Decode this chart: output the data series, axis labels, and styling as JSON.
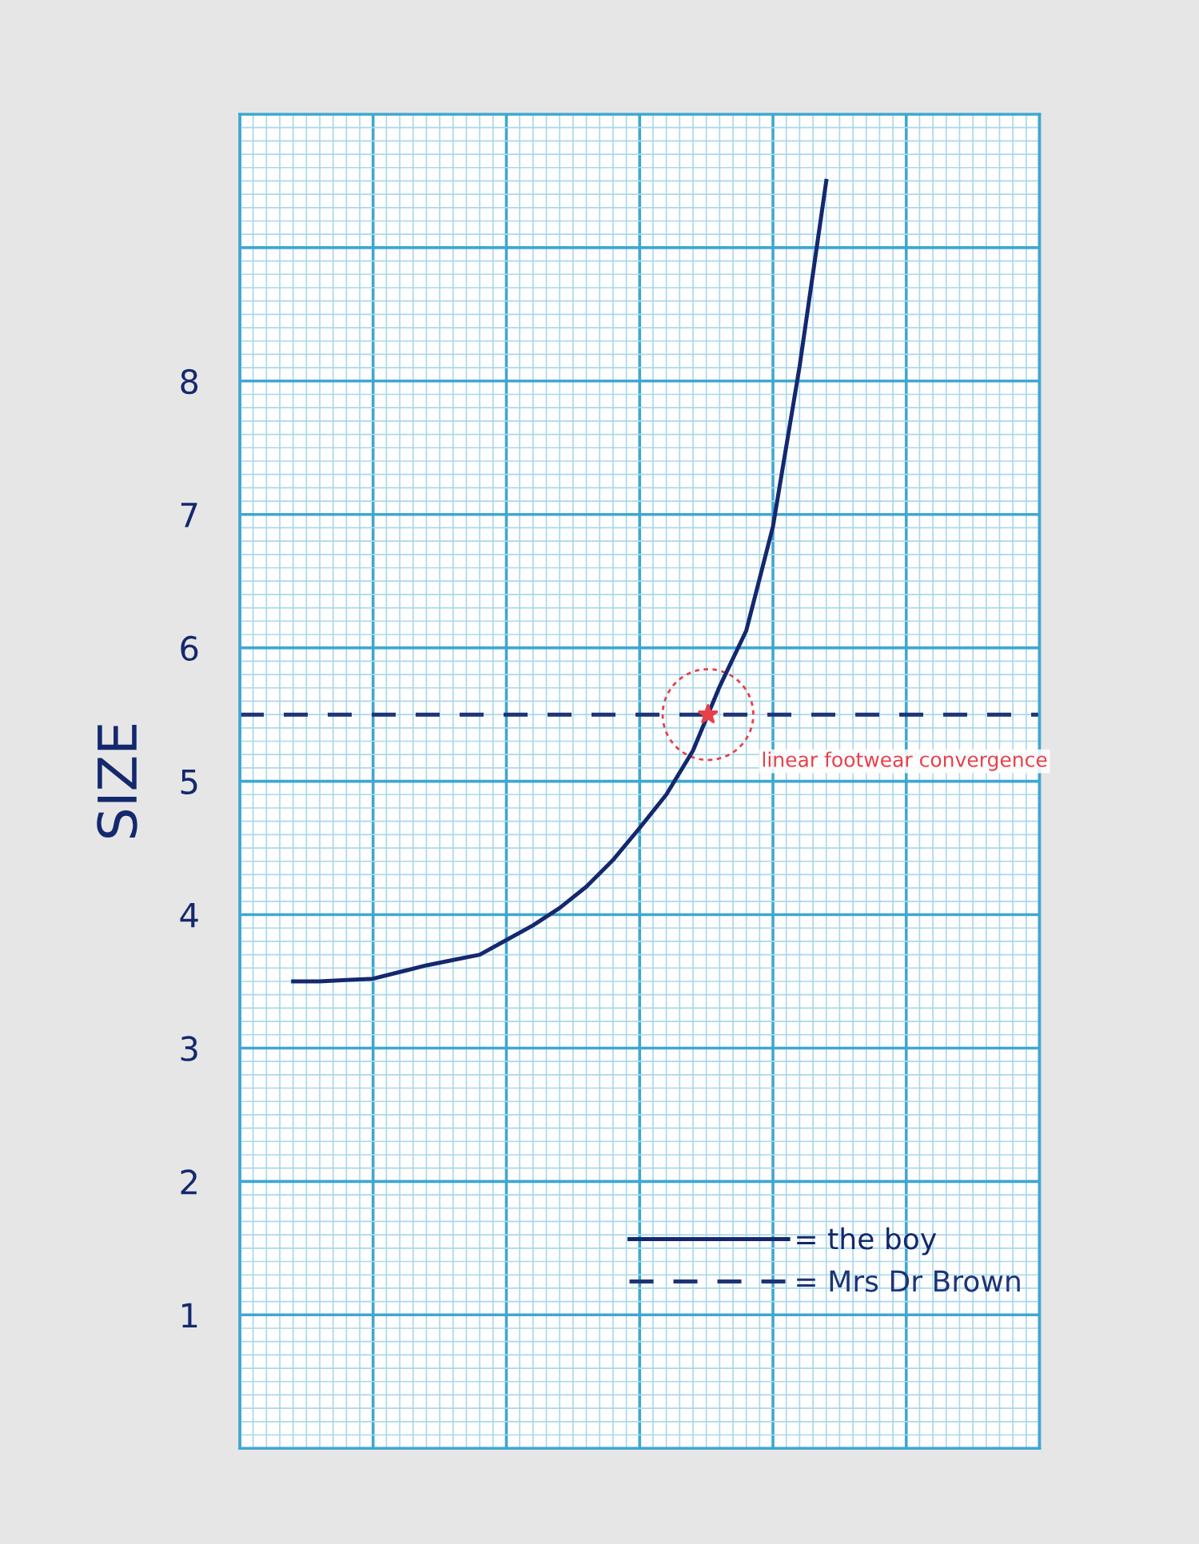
{
  "chart_data": {
    "type": "line",
    "ylabel": "SIZE",
    "categories": [
      null,
      null,
      null,
      null,
      null,
      null,
      null,
      null,
      null,
      null,
      null,
      null,
      null,
      null,
      null,
      null,
      null,
      null,
      null,
      null,
      null,
      null,
      null,
      null,
      null,
      null,
      null,
      null,
      null,
      null,
      null
    ],
    "series": [
      {
        "name": "= the boy",
        "color": "#14286e",
        "line_style": "solid",
        "values": [
          null,
          null,
          3.5,
          3.5,
          3.51,
          3.52,
          3.57,
          3.62,
          3.66,
          3.7,
          3.81,
          3.92,
          4.05,
          4.21,
          4.41,
          4.65,
          4.9,
          5.23,
          5.71,
          6.13,
          6.91,
          8.11,
          9.5,
          null,
          null,
          null,
          null,
          null,
          null,
          null,
          null
        ]
      },
      {
        "name": "= Mrs Dr Brown",
        "color": "#1c3478",
        "line_style": "dashed",
        "values": [
          5.5,
          5.5,
          5.5,
          5.5,
          5.5,
          5.5,
          5.5,
          5.5,
          5.5,
          5.5,
          5.5,
          5.5,
          5.5,
          5.5,
          5.5,
          5.5,
          5.5,
          5.5,
          5.5,
          5.5,
          5.5,
          5.5,
          5.5,
          5.5,
          5.5,
          5.5,
          5.5,
          5.5,
          5.5,
          5.5,
          5.5
        ]
      }
    ],
    "ylim": [
      0,
      10
    ],
    "yticks": [
      1,
      2,
      3,
      4,
      5,
      6,
      7,
      8,
      {
        "value": 9,
        "label": null
      }
    ],
    "grid": true,
    "legend": "bottom right",
    "annotations": [
      {
        "text": "linear footwear convergence",
        "y": 5.5
      }
    ]
  }
}
